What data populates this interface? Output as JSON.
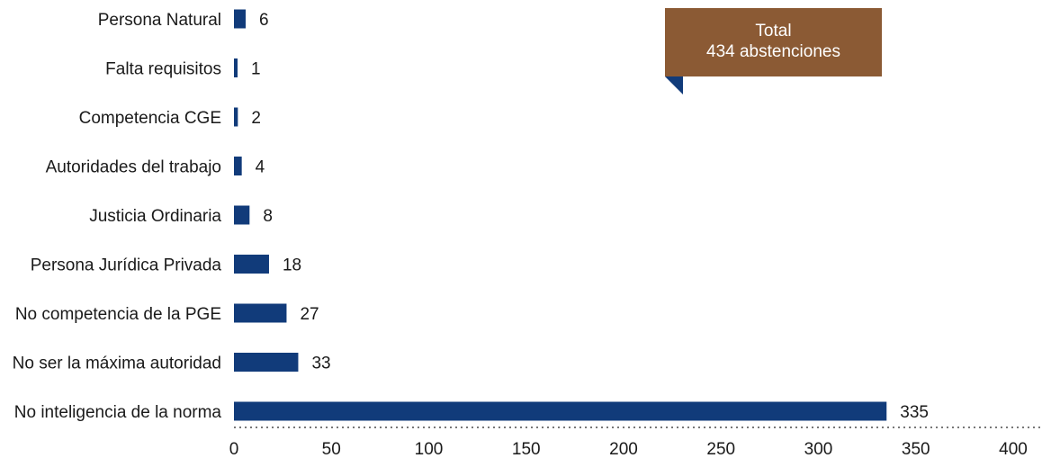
{
  "chart_data": {
    "type": "bar",
    "orientation": "horizontal",
    "categories": [
      "Persona Natural",
      "Falta requisitos",
      "Competencia CGE",
      "Autoridades del trabajo",
      "Justicia Ordinaria",
      "Persona Jurídica Privada",
      "No competencia de la PGE",
      "No ser la máxima autoridad",
      "No inteligencia de la norma"
    ],
    "values": [
      6,
      1,
      2,
      4,
      8,
      18,
      27,
      33,
      335
    ],
    "xlim": [
      0,
      400
    ],
    "xticks": [
      "0",
      "50",
      "100",
      "150",
      "200",
      "250",
      "300",
      "350",
      "400"
    ],
    "title": "",
    "xlabel": "",
    "ylabel": "",
    "grid": false,
    "bar_color": "#113b7a",
    "annotation": {
      "line1": "Total",
      "line2": "434 abstenciones",
      "color": "#8b5a34",
      "tail_color": "#113b7a"
    }
  }
}
